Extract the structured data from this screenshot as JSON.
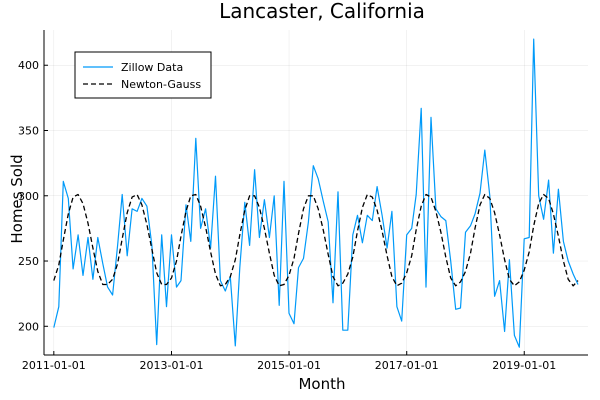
{
  "chart_data": {
    "type": "line",
    "title": "Lancaster, California",
    "xlabel": "Month",
    "ylabel": "Homes Sold",
    "x_ticks": [
      "2011-01-01",
      "2013-01-01",
      "2015-01-01",
      "2017-01-01",
      "2019-01-01"
    ],
    "y_ticks": [
      200,
      250,
      300,
      350,
      400
    ],
    "xlim": [
      "2010-11-01",
      "2020-02-01"
    ],
    "ylim": [
      178,
      427
    ],
    "grid": true,
    "legend_position": "top-left",
    "series": [
      {
        "name": "Zillow Data",
        "color": "#009af9",
        "style": "solid",
        "x": [
          "2011-01",
          "2011-02",
          "2011-03",
          "2011-04",
          "2011-05",
          "2011-06",
          "2011-07",
          "2011-08",
          "2011-09",
          "2011-10",
          "2011-11",
          "2011-12",
          "2012-01",
          "2012-02",
          "2012-03",
          "2012-04",
          "2012-05",
          "2012-06",
          "2012-07",
          "2012-08",
          "2012-09",
          "2012-10",
          "2012-11",
          "2012-12",
          "2013-01",
          "2013-02",
          "2013-03",
          "2013-04",
          "2013-05",
          "2013-06",
          "2013-07",
          "2013-08",
          "2013-09",
          "2013-10",
          "2013-11",
          "2013-12",
          "2014-01",
          "2014-02",
          "2014-03",
          "2014-04",
          "2014-05",
          "2014-06",
          "2014-07",
          "2014-08",
          "2014-09",
          "2014-10",
          "2014-11",
          "2014-12",
          "2015-01",
          "2015-02",
          "2015-03",
          "2015-04",
          "2015-05",
          "2015-06",
          "2015-07",
          "2015-08",
          "2015-09",
          "2015-10",
          "2015-11",
          "2015-12",
          "2016-01",
          "2016-02",
          "2016-03",
          "2016-04",
          "2016-05",
          "2016-06",
          "2016-07",
          "2016-08",
          "2016-09",
          "2016-10",
          "2016-11",
          "2016-12",
          "2017-01",
          "2017-02",
          "2017-03",
          "2017-04",
          "2017-05",
          "2017-06",
          "2017-07",
          "2017-08",
          "2017-09",
          "2017-10",
          "2017-11",
          "2017-12",
          "2018-01",
          "2018-02",
          "2018-03",
          "2018-04",
          "2018-05",
          "2018-06",
          "2018-07",
          "2018-08",
          "2018-09",
          "2018-10",
          "2018-11",
          "2018-12",
          "2019-01",
          "2019-02",
          "2019-03",
          "2019-04",
          "2019-05",
          "2019-06",
          "2019-07",
          "2019-08",
          "2019-09",
          "2019-10",
          "2019-11",
          "2019-12"
        ],
        "y": [
          199,
          215,
          311,
          298,
          244,
          270,
          239,
          268,
          236,
          268,
          248,
          230,
          224,
          262,
          301,
          254,
          290,
          288,
          298,
          292,
          262,
          186,
          270,
          215,
          270,
          230,
          235,
          293,
          265,
          344,
          275,
          290,
          260,
          315,
          235,
          227,
          238,
          185,
          245,
          295,
          262,
          320,
          268,
          297,
          268,
          300,
          216,
          311,
          210,
          202,
          245,
          252,
          280,
          323,
          313,
          296,
          280,
          218,
          303,
          197,
          197,
          270,
          285,
          264,
          285,
          281,
          307,
          285,
          260,
          288,
          215,
          204,
          270,
          275,
          301,
          367,
          230,
          360,
          290,
          284,
          281,
          250,
          213,
          214,
          272,
          277,
          286,
          302,
          335,
          300,
          223,
          235,
          196,
          251,
          193,
          184,
          267,
          268,
          420,
          300,
          282,
          312,
          256,
          305,
          265,
          250,
          240,
          232
        ]
      },
      {
        "name": "Newton-Gauss",
        "color": "#000000",
        "style": "dashed",
        "x": [
          "2011-01",
          "2011-02",
          "2011-03",
          "2011-04",
          "2011-05",
          "2011-06",
          "2011-07",
          "2011-08",
          "2011-09",
          "2011-10",
          "2011-11",
          "2011-12",
          "2012-01",
          "2012-02",
          "2012-03",
          "2012-04",
          "2012-05",
          "2012-06",
          "2012-07",
          "2012-08",
          "2012-09",
          "2012-10",
          "2012-11",
          "2012-12",
          "2013-01",
          "2013-02",
          "2013-03",
          "2013-04",
          "2013-05",
          "2013-06",
          "2013-07",
          "2013-08",
          "2013-09",
          "2013-10",
          "2013-11",
          "2013-12",
          "2014-01",
          "2014-02",
          "2014-03",
          "2014-04",
          "2014-05",
          "2014-06",
          "2014-07",
          "2014-08",
          "2014-09",
          "2014-10",
          "2014-11",
          "2014-12",
          "2015-01",
          "2015-02",
          "2015-03",
          "2015-04",
          "2015-05",
          "2015-06",
          "2015-07",
          "2015-08",
          "2015-09",
          "2015-10",
          "2015-11",
          "2015-12",
          "2016-01",
          "2016-02",
          "2016-03",
          "2016-04",
          "2016-05",
          "2016-06",
          "2016-07",
          "2016-08",
          "2016-09",
          "2016-10",
          "2016-11",
          "2016-12",
          "2017-01",
          "2017-02",
          "2017-03",
          "2017-04",
          "2017-05",
          "2017-06",
          "2017-07",
          "2017-08",
          "2017-09",
          "2017-10",
          "2017-11",
          "2017-12",
          "2018-01",
          "2018-02",
          "2018-03",
          "2018-04",
          "2018-05",
          "2018-06",
          "2018-07",
          "2018-08",
          "2018-09",
          "2018-10",
          "2018-11",
          "2018-12",
          "2019-01",
          "2019-02",
          "2019-03",
          "2019-04",
          "2019-05",
          "2019-06",
          "2019-07",
          "2019-08",
          "2019-09",
          "2019-10",
          "2019-11",
          "2019-12"
        ],
        "y": [
          235,
          247,
          266,
          286,
          299,
          301,
          294,
          279,
          260,
          242,
          232,
          232,
          236,
          248,
          267,
          287,
          299,
          301,
          293,
          278,
          259,
          241,
          232,
          232,
          237,
          250,
          269,
          288,
          300,
          301,
          292,
          276,
          257,
          240,
          231,
          232,
          238,
          251,
          270,
          289,
          300,
          300,
          291,
          275,
          256,
          239,
          231,
          232,
          239,
          252,
          271,
          290,
          300,
          300,
          290,
          274,
          255,
          238,
          231,
          233,
          240,
          253,
          273,
          291,
          301,
          299,
          289,
          273,
          254,
          238,
          231,
          233,
          241,
          254,
          274,
          292,
          301,
          299,
          288,
          272,
          253,
          237,
          231,
          234,
          242,
          256,
          275,
          293,
          301,
          298,
          287,
          270,
          251,
          236,
          231,
          234,
          243,
          257,
          277,
          294,
          301,
          298,
          286,
          269,
          250,
          236,
          231,
          235
        ]
      }
    ]
  }
}
